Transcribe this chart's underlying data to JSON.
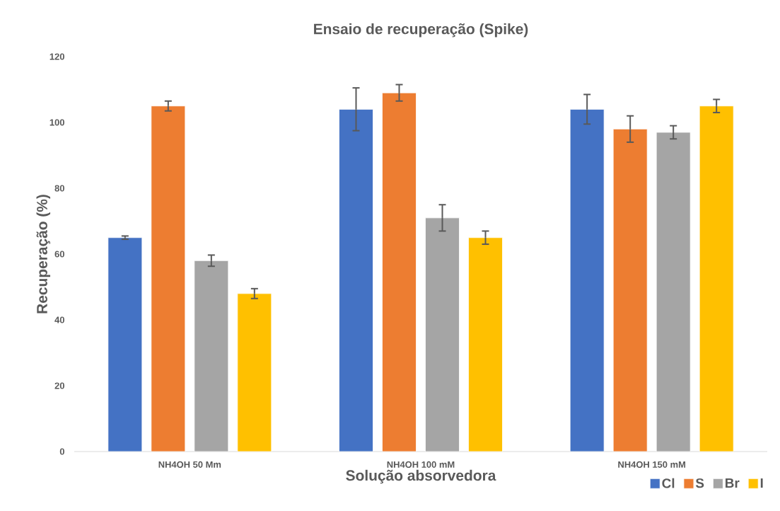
{
  "chart_data": {
    "type": "bar",
    "title": "Ensaio de recuperação (Spike)",
    "xlabel": "Solução absorvedora",
    "ylabel": "Recuperação (%)",
    "categories": [
      "NH4OH 50 Mm",
      "NH4OH 100 mM",
      "NH4OH 150 mM"
    ],
    "series": [
      {
        "name": "Cl",
        "color": "#4472c4",
        "values": [
          65,
          104,
          104
        ],
        "errors": [
          0.5,
          6.5,
          4.5
        ]
      },
      {
        "name": "S",
        "color": "#ed7d31",
        "values": [
          105,
          109,
          98
        ],
        "errors": [
          1.5,
          2.5,
          4
        ]
      },
      {
        "name": "Br",
        "color": "#a5a5a5",
        "values": [
          58,
          71,
          97
        ],
        "errors": [
          1.7,
          4,
          2
        ]
      },
      {
        "name": "I",
        "color": "#ffc000",
        "values": [
          48,
          65,
          105
        ],
        "errors": [
          1.5,
          2,
          2
        ]
      }
    ],
    "ylim": [
      0,
      120
    ],
    "yticks": [
      0,
      20,
      40,
      60,
      80,
      100,
      120
    ],
    "legend": "bottom right"
  }
}
